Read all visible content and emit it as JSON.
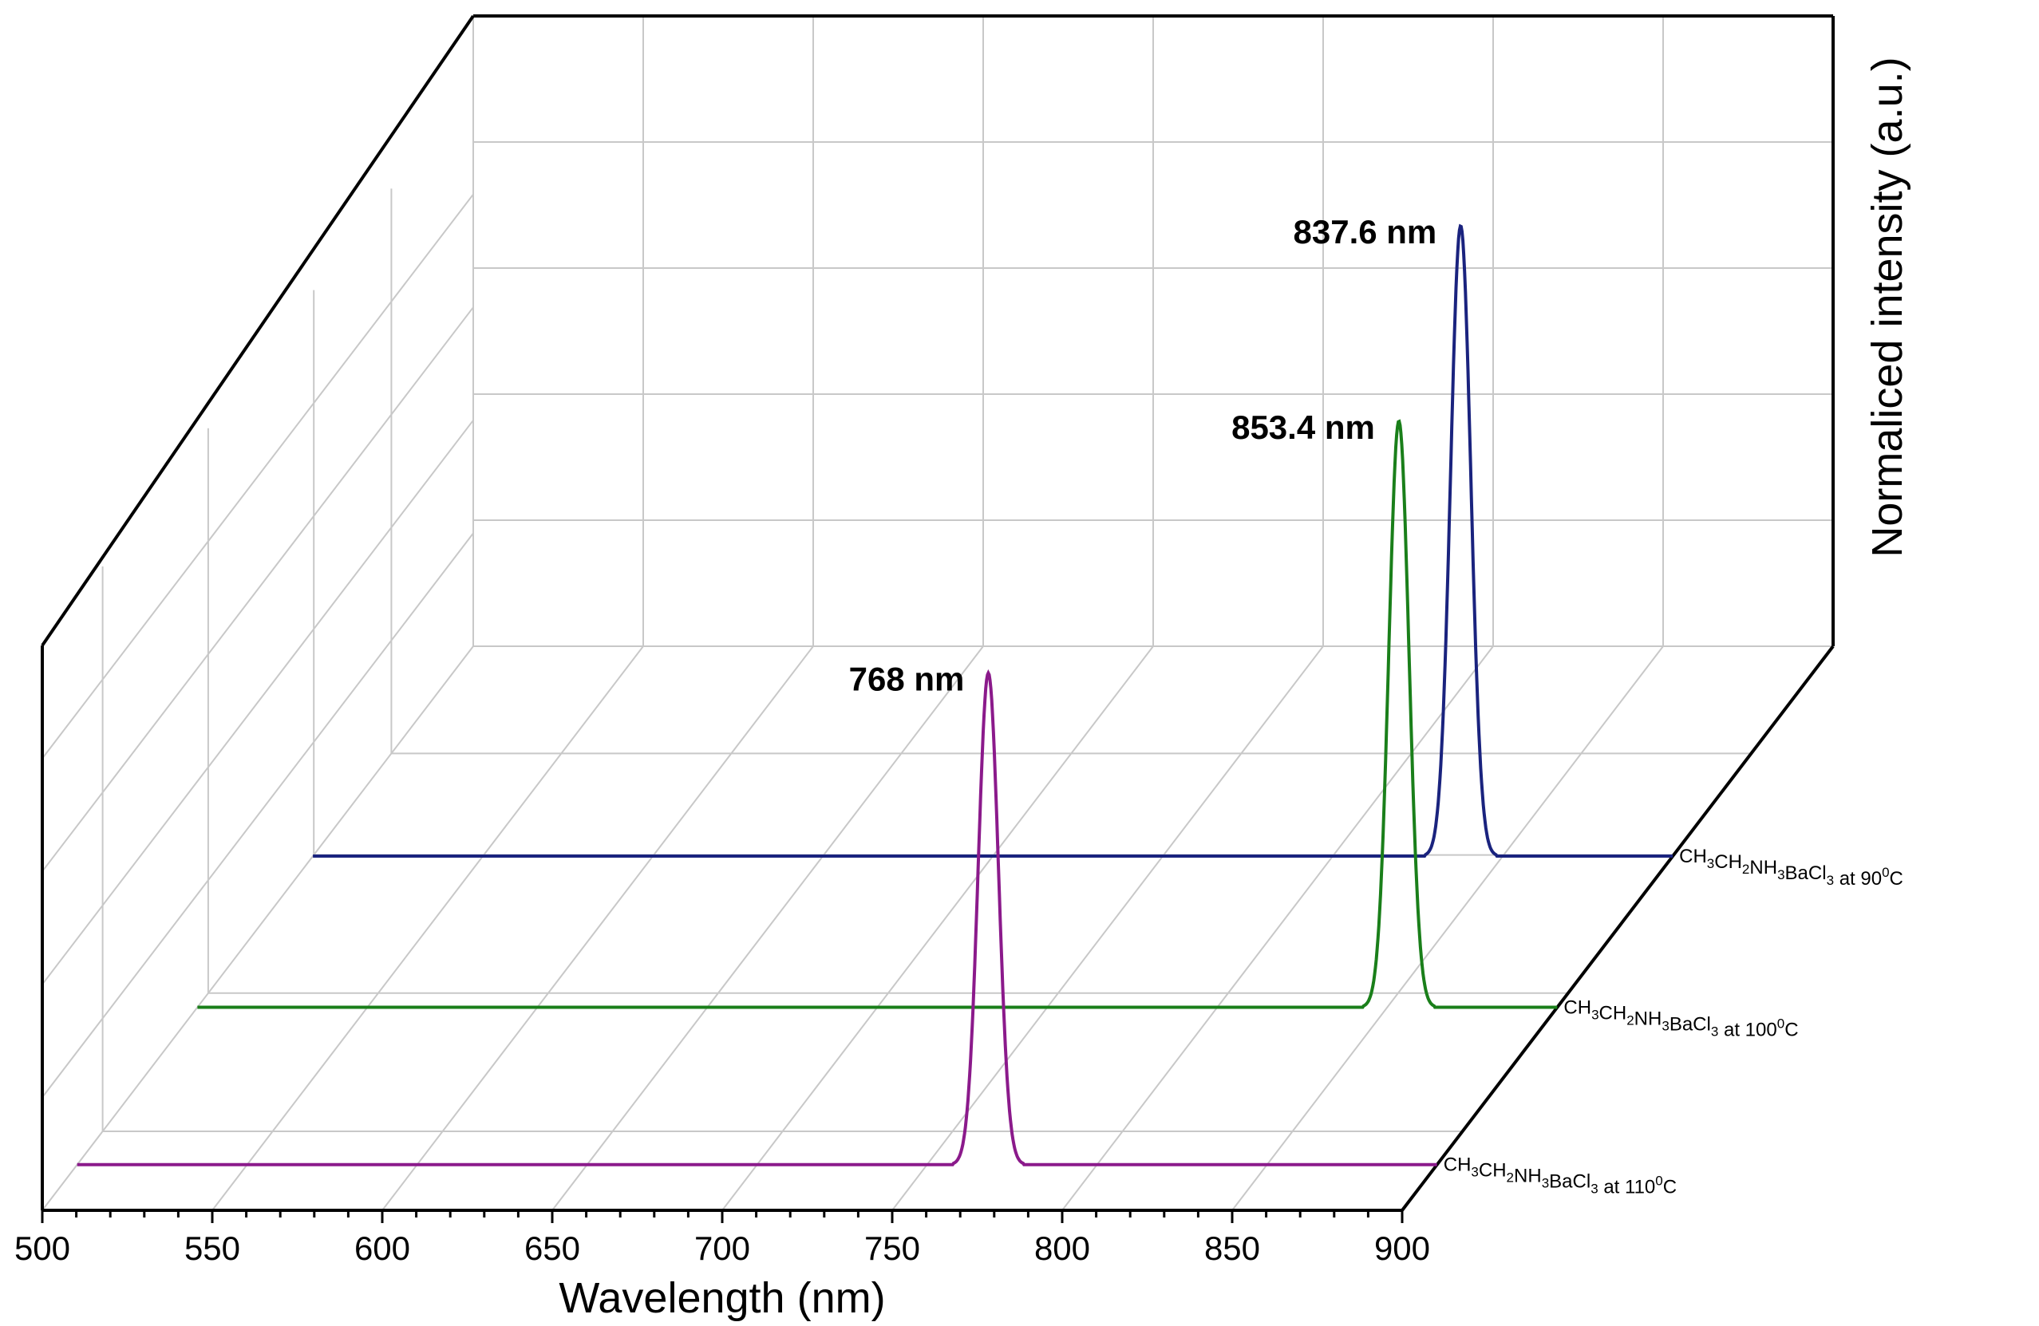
{
  "chart_data": {
    "type": "line",
    "subtype": "3d-waterfall",
    "x_label": "Wavelength (nm)",
    "z_label": "Normaliced intensity (a.u.)",
    "xlim": [
      500,
      900
    ],
    "x_ticks": [
      500,
      550,
      600,
      650,
      700,
      750,
      800,
      850,
      900
    ],
    "x_minor_step": 10,
    "ylim": [
      0,
      1
    ],
    "grid": true,
    "series": [
      {
        "name": "CH3CH2NH3BaCl3 at 110°C",
        "legend": {
          "prefix": "CH",
          "parts": [
            [
              "3",
              ""
            ],
            [
              "CH",
              ""
            ],
            [
              "2",
              ""
            ],
            [
              "NH",
              ""
            ],
            [
              "3",
              ""
            ],
            [
              "BaCl",
              ""
            ],
            [
              "3",
              ""
            ]
          ]
        },
        "color": "#8B1A8B",
        "peak_nm": 768,
        "peak_height": 0.78,
        "fwhm_nm": 7,
        "annotation": "768 nm"
      },
      {
        "name": "CH3CH2NH3BaCl3 at 100°C",
        "color": "#1A7F1A",
        "peak_nm": 853.4,
        "peak_height": 0.93,
        "fwhm_nm": 7,
        "annotation": "853.4 nm"
      },
      {
        "name": "CH3CH2NH3BaCl3 at 90°C",
        "color": "#1A237E",
        "peak_nm": 837.6,
        "peak_height": 1.0,
        "fwhm_nm": 7,
        "annotation": "837.6 nm"
      }
    ],
    "legend_labels": [
      {
        "formula": [
          [
            "CH",
            ""
          ],
          [
            "3",
            "sub"
          ],
          [
            "CH",
            ""
          ],
          [
            "2",
            "sub"
          ],
          [
            "NH",
            ""
          ],
          [
            "3",
            "sub"
          ],
          [
            "BaCl",
            ""
          ],
          [
            "3",
            "sub"
          ]
        ],
        "condition": " at 110",
        "deg": "0",
        "unit": "C"
      },
      {
        "formula": [
          [
            "CH",
            ""
          ],
          [
            "3",
            "sub"
          ],
          [
            "CH",
            ""
          ],
          [
            "2",
            "sub"
          ],
          [
            "NH",
            ""
          ],
          [
            "3",
            "sub"
          ],
          [
            "BaCl",
            ""
          ],
          [
            "3",
            "sub"
          ]
        ],
        "condition": " at 100",
        "deg": "0",
        "unit": "C"
      },
      {
        "formula": [
          [
            "CH",
            ""
          ],
          [
            "3",
            "sub"
          ],
          [
            "CH",
            ""
          ],
          [
            "2",
            "sub"
          ],
          [
            "NH",
            ""
          ],
          [
            "3",
            "sub"
          ],
          [
            "BaCl",
            ""
          ],
          [
            "3",
            "sub"
          ]
        ],
        "condition": " at 90",
        "deg": "0",
        "unit": "C"
      }
    ]
  }
}
